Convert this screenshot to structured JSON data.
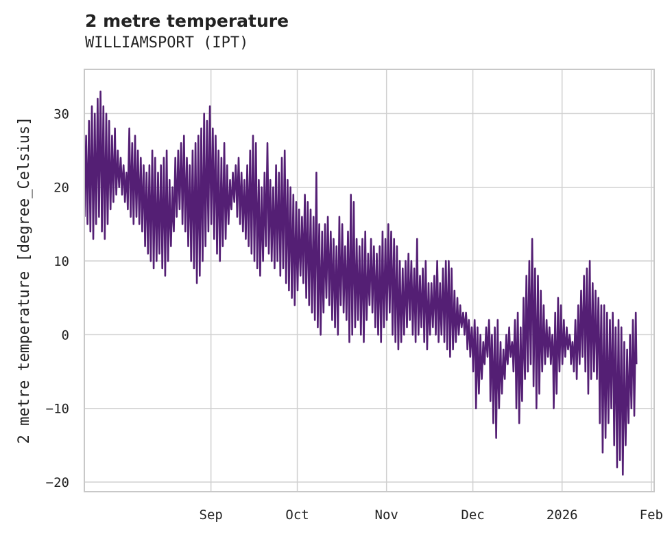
{
  "chart_data": {
    "type": "line",
    "title": "2 metre temperature",
    "subtitle": "WILLIAMSPORT (IPT)",
    "ylabel": "2 metre temperature [degree_Celsius]",
    "xlabel": "",
    "xlim": [
      "2025-07-19",
      "2026-02-02"
    ],
    "ylim": [
      -21.3,
      36
    ],
    "grid": true,
    "x_ticks": [
      {
        "date": "2025-09-01",
        "label": "Sep"
      },
      {
        "date": "2025-10-01",
        "label": "Oct"
      },
      {
        "date": "2025-11-01",
        "label": "Nov"
      },
      {
        "date": "2025-12-01",
        "label": "Dec"
      },
      {
        "date": "2026-01-01",
        "label": "2026"
      },
      {
        "date": "2026-02-01",
        "label": "Feb"
      }
    ],
    "y_ticks": [
      {
        "value": 30,
        "label": "30"
      },
      {
        "value": 20,
        "label": "20"
      },
      {
        "value": 10,
        "label": "10"
      },
      {
        "value": 0,
        "label": "0"
      },
      {
        "value": -10,
        "label": "−10"
      },
      {
        "value": -20,
        "label": "−20"
      }
    ],
    "series": [
      {
        "name": "2 metre temperature",
        "color": "#541f74",
        "daily_series_start": "2025-07-19",
        "daily_max": [
          27,
          29,
          31,
          30,
          32,
          33,
          31,
          30,
          29,
          27,
          28,
          25,
          24,
          23,
          22,
          28,
          26,
          27,
          25,
          24,
          23,
          22,
          23,
          25,
          24,
          22,
          23,
          24,
          25,
          21,
          20,
          24,
          25,
          26,
          27,
          24,
          23,
          25,
          26,
          27,
          28,
          30,
          29,
          31,
          28,
          27,
          25,
          24,
          26,
          23,
          21,
          22,
          23,
          24,
          22,
          21,
          23,
          25,
          27,
          26,
          21,
          20,
          22,
          26,
          21,
          20,
          23,
          22,
          24,
          25,
          21,
          20,
          19,
          18,
          17,
          16,
          19,
          18,
          17,
          16,
          22,
          15,
          14,
          15,
          16,
          14,
          13,
          12,
          16,
          15,
          12,
          14,
          19,
          18,
          13,
          12,
          13,
          14,
          11,
          13,
          12,
          11,
          12,
          14,
          13,
          15,
          14,
          13,
          12,
          10,
          9,
          10,
          11,
          10,
          9,
          13,
          8,
          9,
          10,
          7,
          7,
          8,
          10,
          7,
          9,
          10,
          10,
          9,
          6,
          5,
          4,
          3,
          3,
          2,
          1,
          2,
          1,
          0,
          -1,
          1,
          2,
          0,
          1,
          2,
          -1,
          -2,
          0,
          1,
          -1,
          2,
          3,
          1,
          5,
          8,
          10,
          13,
          9,
          8,
          6,
          4,
          2,
          1,
          0,
          3,
          5,
          4,
          2,
          1,
          0,
          -1,
          2,
          4,
          6,
          8,
          9,
          10,
          7,
          6,
          5,
          4,
          4,
          3,
          2,
          3,
          1,
          2,
          1,
          -1,
          -2,
          0,
          2,
          3
        ],
        "daily_min": [
          16,
          15,
          14,
          13,
          15,
          16,
          14,
          13,
          15,
          17,
          18,
          19,
          20,
          19,
          18,
          17,
          16,
          15,
          16,
          15,
          14,
          12,
          11,
          10,
          9,
          10,
          11,
          9,
          8,
          10,
          12,
          14,
          16,
          17,
          15,
          14,
          12,
          10,
          9,
          7,
          8,
          10,
          12,
          14,
          15,
          13,
          11,
          10,
          12,
          13,
          15,
          17,
          18,
          16,
          15,
          14,
          13,
          12,
          11,
          10,
          9,
          8,
          10,
          12,
          11,
          10,
          9,
          10,
          8,
          9,
          7,
          6,
          5,
          4,
          6,
          8,
          7,
          5,
          4,
          3,
          2,
          1,
          0,
          3,
          5,
          4,
          2,
          1,
          0,
          4,
          3,
          2,
          -1,
          0,
          1,
          2,
          0,
          -1,
          2,
          4,
          3,
          1,
          0,
          -1,
          1,
          2,
          3,
          0,
          -1,
          -2,
          -1,
          0,
          1,
          2,
          0,
          -1,
          0,
          1,
          -1,
          -2,
          0,
          1,
          0,
          -1,
          0,
          -1,
          -2,
          -3,
          -2,
          -1,
          0,
          1,
          0,
          -2,
          -3,
          -5,
          -10,
          -8,
          -6,
          -4,
          -3,
          -9,
          -12,
          -14,
          -10,
          -8,
          -6,
          -4,
          -3,
          -5,
          -10,
          -12,
          -9,
          -6,
          -5,
          -4,
          -7,
          -10,
          -8,
          -5,
          -4,
          -3,
          -4,
          -10,
          -8,
          -5,
          -4,
          -3,
          -2,
          -4,
          -5,
          -6,
          -4,
          -3,
          -5,
          -8,
          -6,
          -5,
          -6,
          -12,
          -16,
          -14,
          -12,
          -10,
          -15,
          -18,
          -17,
          -19,
          -15,
          -12,
          -10,
          -11,
          -9
        ]
      }
    ]
  }
}
